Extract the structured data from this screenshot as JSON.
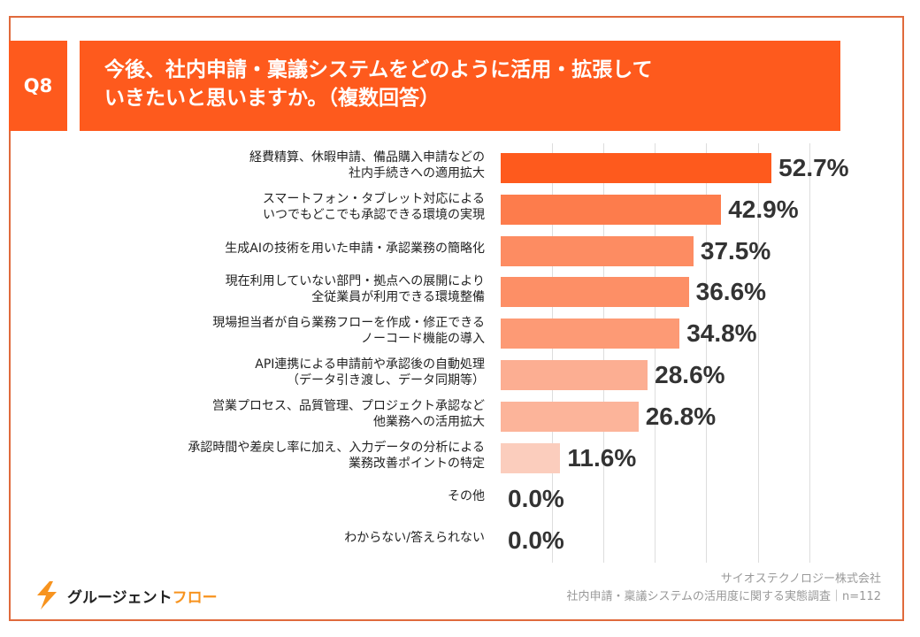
{
  "header": {
    "q_label": "Q8",
    "title": "今後、社内申請・稟議システムをどのように活用・拡張して\nいきたいと思いますか。（複数回答）"
  },
  "chart_data": {
    "type": "bar",
    "orientation": "horizontal",
    "xlim": [
      0,
      60
    ],
    "grid": true,
    "value_unit": "%",
    "categories": [
      "経費精算、休暇申請、備品購入申請などの\n社内手続きへの適用拡大",
      "スマートフォン・タブレット対応による\nいつでもどこでも承認できる環境の実現",
      "生成AIの技術を用いた申請・承認業務の簡略化",
      "現在利用していない部門・拠点への展開により\n全従業員が利用できる環境整備",
      "現場担当者が自ら業務フローを作成・修正できる\nノーコード機能の導入",
      "API連携による申請前や承認後の自動処理\n（データ引き渡し、データ同期等）",
      "営業プロセス、品質管理、プロジェクト承認など\n他業務への活用拡大",
      "承認時間や差戻し率に加え、入力データの分析による\n業務改善ポイントの特定",
      "その他",
      "わからない/答えられない"
    ],
    "values": [
      52.7,
      42.9,
      37.5,
      36.6,
      34.8,
      28.6,
      26.8,
      11.6,
      0.0,
      0.0
    ],
    "labels": [
      "52.7%",
      "42.9%",
      "37.5%",
      "36.6%",
      "34.8%",
      "28.6%",
      "26.8%",
      "11.6%",
      "0.0%",
      "0.0%"
    ],
    "colors": [
      "#fe5a1d",
      "#fd7c4c",
      "#fd8c62",
      "#fd8f66",
      "#fd9a75",
      "#fcae92",
      "#fcb49a",
      "#fbcdbd",
      "#fbd8cc",
      "#fbd8cc"
    ]
  },
  "footer": {
    "source_company": "サイオステクノロジー株式会社",
    "source_survey": "社内申請・稟議システムの活用度に関する実態調査｜n=112",
    "logo_text_a": "グルージェント",
    "logo_text_b": "フロー",
    "brand_color": "#f7931e"
  }
}
